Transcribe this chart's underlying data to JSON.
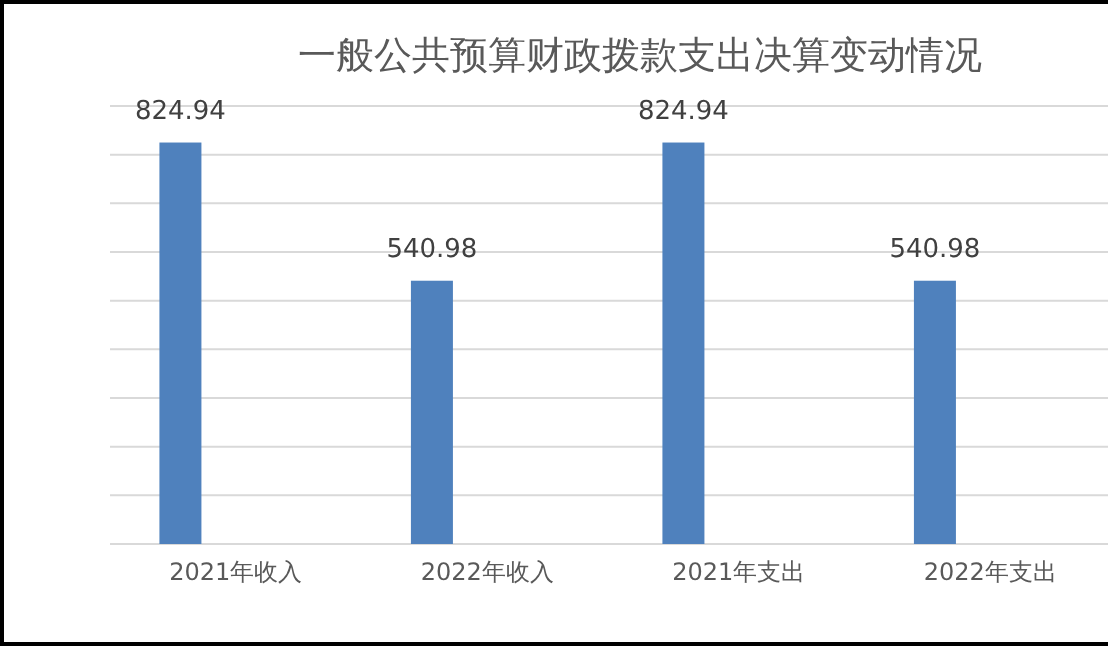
{
  "chart_data": {
    "type": "bar",
    "title": "一般公共预算财政拨款支出决算变动情况",
    "categories": [
      "2021年收入",
      "2022年收入",
      "2021年支出",
      "2022年支出"
    ],
    "values": [
      824.94,
      540.98,
      824.94,
      540.98
    ],
    "color": "#4f81bd",
    "ylim": [
      0,
      900
    ],
    "yticks": [
      {
        "value": 0,
        "label": null
      },
      {
        "value": 100,
        "label": null
      },
      {
        "value": 200,
        "label": null
      },
      {
        "value": 300,
        "label": null
      },
      {
        "value": 400,
        "label": null
      },
      {
        "value": 500,
        "label": null
      },
      {
        "value": 600,
        "label": null
      },
      {
        "value": 700,
        "label": null
      },
      {
        "value": 800,
        "label": null
      },
      {
        "value": 900,
        "label": null
      }
    ],
    "grid": "y",
    "tick_labels": "x",
    "data_labels": true
  }
}
